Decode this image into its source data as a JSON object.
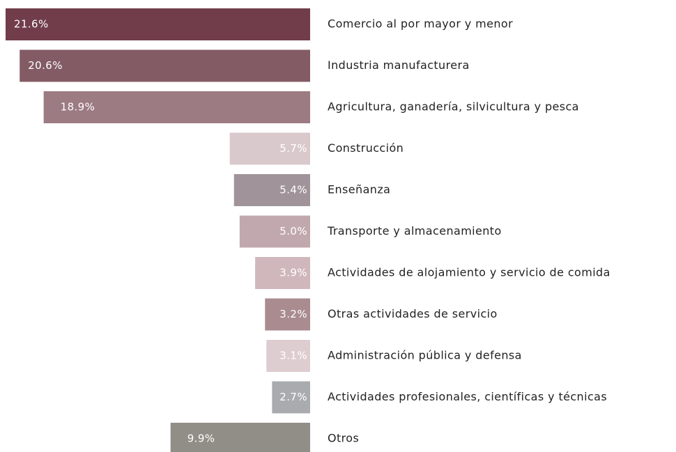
{
  "chart_data": {
    "type": "bar",
    "orientation": "horizontal",
    "categories": [
      "Comercio al por mayor y menor",
      "Industria manufacturera",
      "Agricultura, ganadería, silvicultura y pesca",
      "Construcción",
      "Enseñanza",
      "Transporte y almacenamiento",
      "Actividades de alojamiento y servicio de comida",
      "Otras actividades de servicio",
      "Administración pública y defensa",
      "Actividades profesionales, científicas y técnicas",
      "Otros"
    ],
    "values": [
      21.6,
      20.6,
      18.9,
      5.7,
      5.4,
      5.0,
      3.9,
      3.2,
      3.1,
      2.7,
      9.9
    ],
    "value_labels": [
      "21.6%",
      "20.6%",
      "18.9%",
      "5.7%",
      "5.4%",
      "5.0%",
      "3.9%",
      "3.2%",
      "3.1%",
      "2.7%",
      "9.9%"
    ],
    "colors": [
      "#713d4b",
      "#835b65",
      "#9d7b83",
      "#dac9cc",
      "#a0949a",
      "#c1a8ae",
      "#d0b7bb",
      "#a98b90",
      "#decdd0",
      "#aaabaf",
      "#908e87"
    ]
  }
}
